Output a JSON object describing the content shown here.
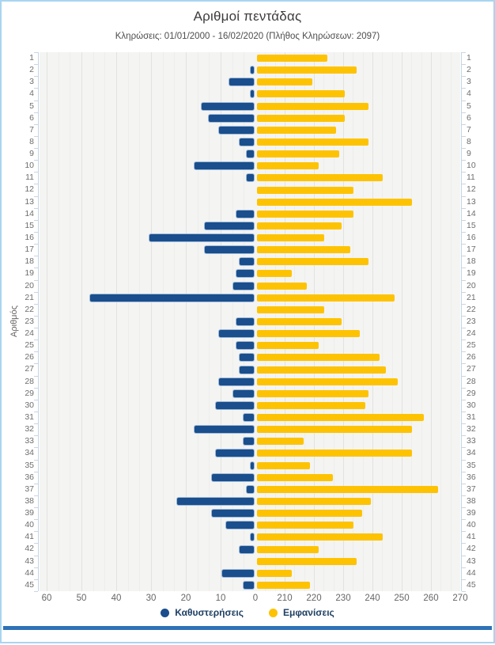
{
  "header": {
    "title": "Αριθμοί πεντάδας",
    "subtitle": "Κληρώσεις: 01/01/2000 - 16/02/2020 (Πλήθος Κληρώσεων: 2097)"
  },
  "chart_data": {
    "type": "bar",
    "orientation": "horizontal-diverging",
    "title": "Αριθμοί πεντάδας",
    "subtitle": "Κληρώσεις: 01/01/2000 - 16/02/2020 (Πλήθος Κληρώσεων: 2097)",
    "ylabel": "Αριθμός",
    "categories": [
      1,
      2,
      3,
      4,
      5,
      6,
      7,
      8,
      9,
      10,
      11,
      12,
      13,
      14,
      15,
      16,
      17,
      18,
      19,
      20,
      21,
      22,
      23,
      24,
      25,
      26,
      27,
      28,
      29,
      30,
      31,
      32,
      33,
      34,
      35,
      36,
      37,
      38,
      39,
      40,
      41,
      42,
      43,
      44,
      45
    ],
    "series": [
      {
        "name": "Καθυστερήσεις",
        "color": "#1a4e8c",
        "direction": "left",
        "values": [
          0,
          1,
          7,
          1,
          15,
          13,
          10,
          4,
          2,
          17,
          2,
          0,
          0,
          5,
          14,
          30,
          14,
          4,
          5,
          6,
          47,
          0,
          5,
          10,
          5,
          4,
          4,
          10,
          6,
          11,
          3,
          17,
          3,
          11,
          1,
          12,
          2,
          22,
          12,
          8,
          1,
          4,
          0,
          9,
          3
        ]
      },
      {
        "name": "Εμφανίσεις",
        "color": "#fdc303",
        "direction": "right",
        "values": [
          224,
          234,
          219,
          230,
          238,
          230,
          227,
          238,
          228,
          221,
          243,
          233,
          253,
          233,
          229,
          223,
          232,
          238,
          212,
          217,
          247,
          223,
          229,
          235,
          221,
          242,
          244,
          248,
          238,
          237,
          257,
          253,
          216,
          253,
          218,
          226,
          262,
          239,
          236,
          233,
          243,
          221,
          234,
          212,
          218
        ]
      }
    ],
    "left_axis": {
      "ticks": [
        60,
        50,
        40,
        30,
        20,
        10,
        0
      ],
      "range": [
        0,
        60
      ]
    },
    "right_axis": {
      "ticks": [
        210,
        220,
        230,
        240,
        250,
        260,
        270
      ],
      "range": [
        200,
        270
      ]
    },
    "legend": [
      "Καθυστερήσεις",
      "Εμφανίσεις"
    ],
    "grid": "on",
    "legend_position": "bottom"
  },
  "colors": {
    "delay_bar": "#1a4e8c",
    "apps_bar": "#fdc303",
    "frame_border": "#a9d5f1",
    "bottom_rule": "#2e72b6",
    "plot_bg": "#f4f4f3"
  }
}
